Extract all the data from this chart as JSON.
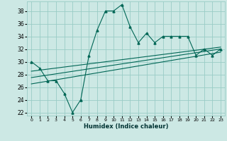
{
  "xlabel": "Humidex (Indice chaleur)",
  "bg_color": "#cce8e4",
  "grid_color": "#99ccc6",
  "line_color": "#006655",
  "xlim": [
    -0.5,
    23.5
  ],
  "ylim": [
    21.5,
    39.5
  ],
  "xticks": [
    0,
    1,
    2,
    3,
    4,
    5,
    6,
    7,
    8,
    9,
    10,
    11,
    12,
    13,
    14,
    15,
    16,
    17,
    18,
    19,
    20,
    21,
    22,
    23
  ],
  "yticks": [
    22,
    24,
    26,
    28,
    30,
    32,
    34,
    36,
    38
  ],
  "main_y": [
    30,
    29,
    27,
    27,
    25,
    22,
    24,
    31,
    35,
    38,
    38,
    39,
    35.5,
    33,
    34.5,
    33,
    34,
    34,
    34,
    34,
    31,
    32,
    31,
    32
  ],
  "trend_lines": [
    [
      0,
      26.5,
      23,
      31.5
    ],
    [
      0,
      27.5,
      23,
      32.0
    ],
    [
      0,
      28.5,
      23,
      32.3
    ]
  ]
}
